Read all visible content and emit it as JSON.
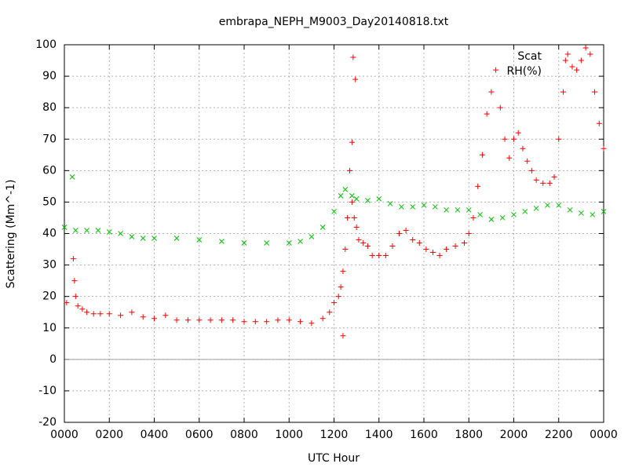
{
  "chart_data": {
    "type": "scatter",
    "title": "embrapa_NEPH_M9003_Day20140818.txt",
    "x_label": "UTC Hour",
    "y_label": "Scattering (Mm^-1)",
    "xlim": [
      0,
      24
    ],
    "ylim": [
      -20,
      100
    ],
    "xticks": [
      {
        "value": 0,
        "label": "0000"
      },
      {
        "value": 2,
        "label": "0200"
      },
      {
        "value": 4,
        "label": "0400"
      },
      {
        "value": 6,
        "label": "0600"
      },
      {
        "value": 8,
        "label": "0800"
      },
      {
        "value": 10,
        "label": "1000"
      },
      {
        "value": 12,
        "label": "1200"
      },
      {
        "value": 14,
        "label": "1400"
      },
      {
        "value": 16,
        "label": "1600"
      },
      {
        "value": 18,
        "label": "1800"
      },
      {
        "value": 20,
        "label": "2000"
      },
      {
        "value": 22,
        "label": "2200"
      },
      {
        "value": 24,
        "label": "0000"
      }
    ],
    "yticks": [
      -20,
      -10,
      0,
      10,
      20,
      30,
      40,
      50,
      60,
      70,
      80,
      90,
      100
    ],
    "grid": true,
    "legend": "upper right",
    "series": [
      {
        "name": "Scat",
        "color": "#ff0000",
        "marker": "+",
        "x": [
          0.1,
          0.4,
          0.45,
          0.5,
          0.6,
          0.8,
          1.0,
          1.3,
          1.6,
          2.0,
          2.5,
          3.0,
          3.5,
          4.0,
          4.5,
          5.0,
          5.5,
          6.0,
          6.5,
          7.0,
          7.5,
          8.0,
          8.5,
          9.0,
          9.5,
          10.0,
          10.5,
          11.0,
          11.5,
          11.8,
          12.0,
          12.2,
          12.3,
          12.4,
          12.4,
          12.5,
          12.6,
          12.7,
          12.8,
          12.8,
          12.85,
          12.9,
          12.95,
          13.0,
          13.1,
          13.3,
          13.5,
          13.7,
          14.0,
          14.3,
          14.6,
          14.9,
          15.2,
          15.5,
          15.8,
          16.1,
          16.4,
          16.7,
          17.0,
          17.4,
          17.8,
          18.0,
          18.2,
          18.4,
          18.6,
          18.8,
          19.0,
          19.2,
          19.4,
          19.6,
          19.8,
          20.0,
          20.2,
          20.4,
          20.6,
          20.8,
          21.0,
          21.3,
          21.6,
          21.8,
          22.0,
          22.2,
          22.3,
          22.4,
          22.6,
          22.8,
          23.0,
          23.2,
          23.4,
          23.6,
          23.8,
          24.0
        ],
        "values": [
          18,
          32,
          25,
          20,
          17,
          16,
          15,
          14.5,
          14.5,
          14.5,
          14,
          15,
          13.5,
          13,
          14,
          12.5,
          12.5,
          12.5,
          12.5,
          12.5,
          12.5,
          12,
          12,
          12,
          12.5,
          12.5,
          12,
          11.5,
          13,
          15,
          18,
          20,
          23,
          28,
          7.5,
          35,
          45,
          60,
          50,
          69,
          96,
          45,
          89,
          42,
          38,
          37,
          36,
          33,
          33,
          33,
          36,
          40,
          41,
          38,
          37,
          35,
          34,
          33,
          35,
          36,
          37,
          40,
          45,
          55,
          65,
          78,
          85,
          92,
          80,
          70,
          64,
          70,
          72,
          67,
          63,
          60,
          57,
          56,
          56,
          58,
          70,
          85,
          95,
          97,
          93,
          92,
          95,
          99,
          97,
          85,
          75,
          67
        ]
      },
      {
        "name": "RH(%)",
        "color": "#00c000",
        "marker": "x",
        "x": [
          0,
          0.35,
          0.5,
          1.0,
          1.5,
          2.0,
          2.5,
          3.0,
          3.5,
          4.0,
          5.0,
          6.0,
          7.0,
          8.0,
          9.0,
          10.0,
          10.5,
          11.0,
          11.5,
          12.0,
          12.3,
          12.5,
          12.8,
          13.0,
          13.5,
          14.0,
          14.5,
          15.0,
          15.5,
          16.0,
          16.5,
          17.0,
          17.5,
          18.0,
          18.5,
          19.0,
          19.5,
          20.0,
          20.5,
          21.0,
          21.5,
          22.0,
          22.5,
          23.0,
          23.5,
          24.0
        ],
        "values": [
          42,
          58,
          41,
          41,
          41,
          40.5,
          40,
          39,
          38.5,
          38.5,
          38.5,
          38,
          37.5,
          37,
          37,
          37,
          37.5,
          39,
          42,
          47,
          52,
          54,
          52,
          51,
          50.5,
          51,
          49.5,
          48.5,
          48.5,
          49,
          48.5,
          47.5,
          47.5,
          47.5,
          46,
          44.5,
          45,
          46,
          47,
          48,
          49,
          49,
          47.5,
          46.5,
          46,
          47
        ]
      }
    ]
  }
}
